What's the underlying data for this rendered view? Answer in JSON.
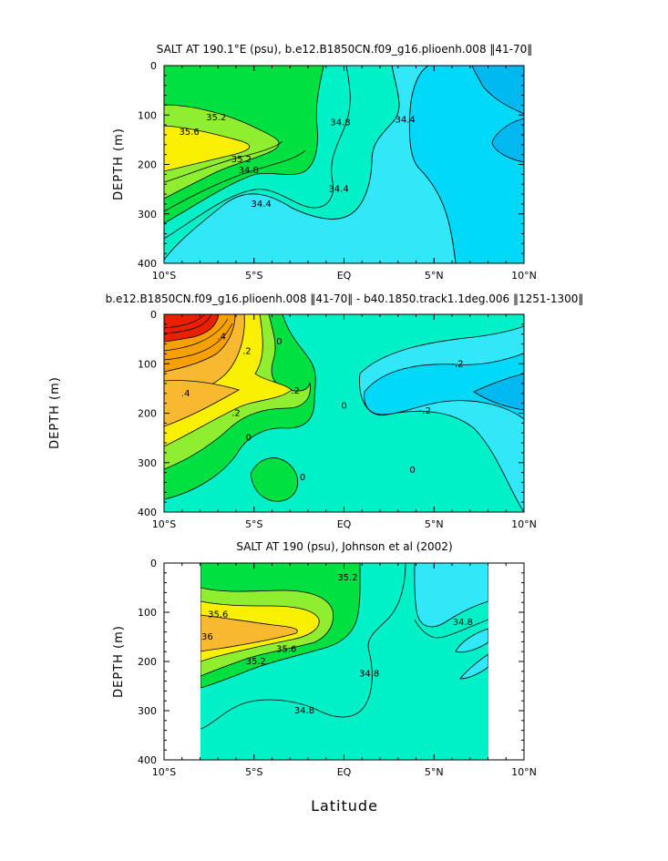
{
  "chart_data": [
    {
      "type": "contour",
      "title": "SALT AT 190.1°E (psu), b.e12.B1850CN.f09_g16.plioenh.008 ‖41-70‖",
      "ylabel": "DEPTH (m)",
      "xlabel": "",
      "x_ticks": [
        "10°S",
        "5°S",
        "EQ",
        "5°N",
        "10°N"
      ],
      "y_ticks": [
        "0",
        "100",
        "200",
        "300",
        "400"
      ],
      "ylim": [
        400,
        0
      ],
      "xlim": [
        -10,
        10
      ],
      "contour_labels": [
        {
          "text": "35.6",
          "x": -8.6,
          "y": 135
        },
        {
          "text": "35.2",
          "x": -7.1,
          "y": 105
        },
        {
          "text": "35.2",
          "x": -5.7,
          "y": 190
        },
        {
          "text": "34.8",
          "x": -5.3,
          "y": 212
        },
        {
          "text": "34.8",
          "x": -0.2,
          "y": 115
        },
        {
          "text": "34.4",
          "x": 3.4,
          "y": 110
        },
        {
          "text": "34.4",
          "x": -0.3,
          "y": 250
        },
        {
          "text": "34.4",
          "x": -4.6,
          "y": 280
        }
      ],
      "colors": {
        "deep": "#00b8f0",
        "blue": "#00d8f8",
        "cyan": "#30e8f8",
        "teal": "#00f0c8",
        "green": "#00e040",
        "lime": "#90ee30",
        "yellow": "#f8f000"
      }
    },
    {
      "type": "contour",
      "title": "b.e12.B1850CN.f09_g16.plioenh.008 ‖41-70‖ - b40.1850.track1.1deg.006 ‖1251-1300‖",
      "ylabel": "DEPTH (m)",
      "xlabel": "",
      "x_ticks": [
        "10°S",
        "5°S",
        "EQ",
        "5°N",
        "10°N"
      ],
      "y_ticks": [
        "0",
        "100",
        "200",
        "300",
        "400"
      ],
      "ylim": [
        400,
        0
      ],
      "xlim": [
        -10,
        10
      ],
      "contour_labels": [
        {
          "text": ".4",
          "x": -6.8,
          "y": 45
        },
        {
          "text": ".2",
          "x": -5.4,
          "y": 75
        },
        {
          "text": "0",
          "x": -3.6,
          "y": 55
        },
        {
          "text": ".4",
          "x": -8.8,
          "y": 160
        },
        {
          "text": ".2",
          "x": -2.7,
          "y": 155
        },
        {
          "text": ".2",
          "x": -6.0,
          "y": 200
        },
        {
          "text": "0",
          "x": -5.3,
          "y": 250
        },
        {
          "text": "0",
          "x": -2.3,
          "y": 330
        },
        {
          "text": "0",
          "x": 0.0,
          "y": 185
        },
        {
          "text": "0",
          "x": 3.8,
          "y": 315
        },
        {
          "text": "-.2",
          "x": 6.3,
          "y": 100
        },
        {
          "text": "-.2",
          "x": 4.5,
          "y": 195
        }
      ],
      "colors": {
        "red": "#e82000",
        "orange": "#f8a000",
        "lightorange": "#f8b830",
        "yellow": "#f8f000",
        "green": "#00e040",
        "teal": "#00f0c8",
        "cyan": "#30e8f8",
        "blue": "#00d8f8",
        "deep": "#00b8f0"
      }
    },
    {
      "type": "contour",
      "title": "SALT AT 190 (psu), Johnson et al (2002)",
      "ylabel": "DEPTH (m)",
      "xlabel": "Latitude",
      "x_ticks": [
        "10°S",
        "5°S",
        "EQ",
        "5°N",
        "10°N"
      ],
      "y_ticks": [
        "0",
        "100",
        "200",
        "300",
        "400"
      ],
      "ylim": [
        400,
        0
      ],
      "xlim": [
        -10,
        10
      ],
      "data_extent_x": [
        -8,
        8
      ],
      "contour_labels": [
        {
          "text": "35.2",
          "x": 0.2,
          "y": 30
        },
        {
          "text": "35.6",
          "x": -7.0,
          "y": 105
        },
        {
          "text": "36",
          "x": -7.6,
          "y": 150
        },
        {
          "text": "35.6",
          "x": -3.2,
          "y": 175
        },
        {
          "text": "35.2",
          "x": -4.9,
          "y": 200
        },
        {
          "text": "34.8",
          "x": 1.4,
          "y": 225
        },
        {
          "text": "34.8",
          "x": 6.6,
          "y": 120
        },
        {
          "text": "34.8",
          "x": -2.2,
          "y": 300
        }
      ],
      "colors": {
        "orange": "#f8b830",
        "yellow": "#f8f000",
        "lime": "#90ee30",
        "green": "#00e040",
        "teal": "#00f0c8",
        "cyan": "#30e8f8"
      }
    }
  ]
}
